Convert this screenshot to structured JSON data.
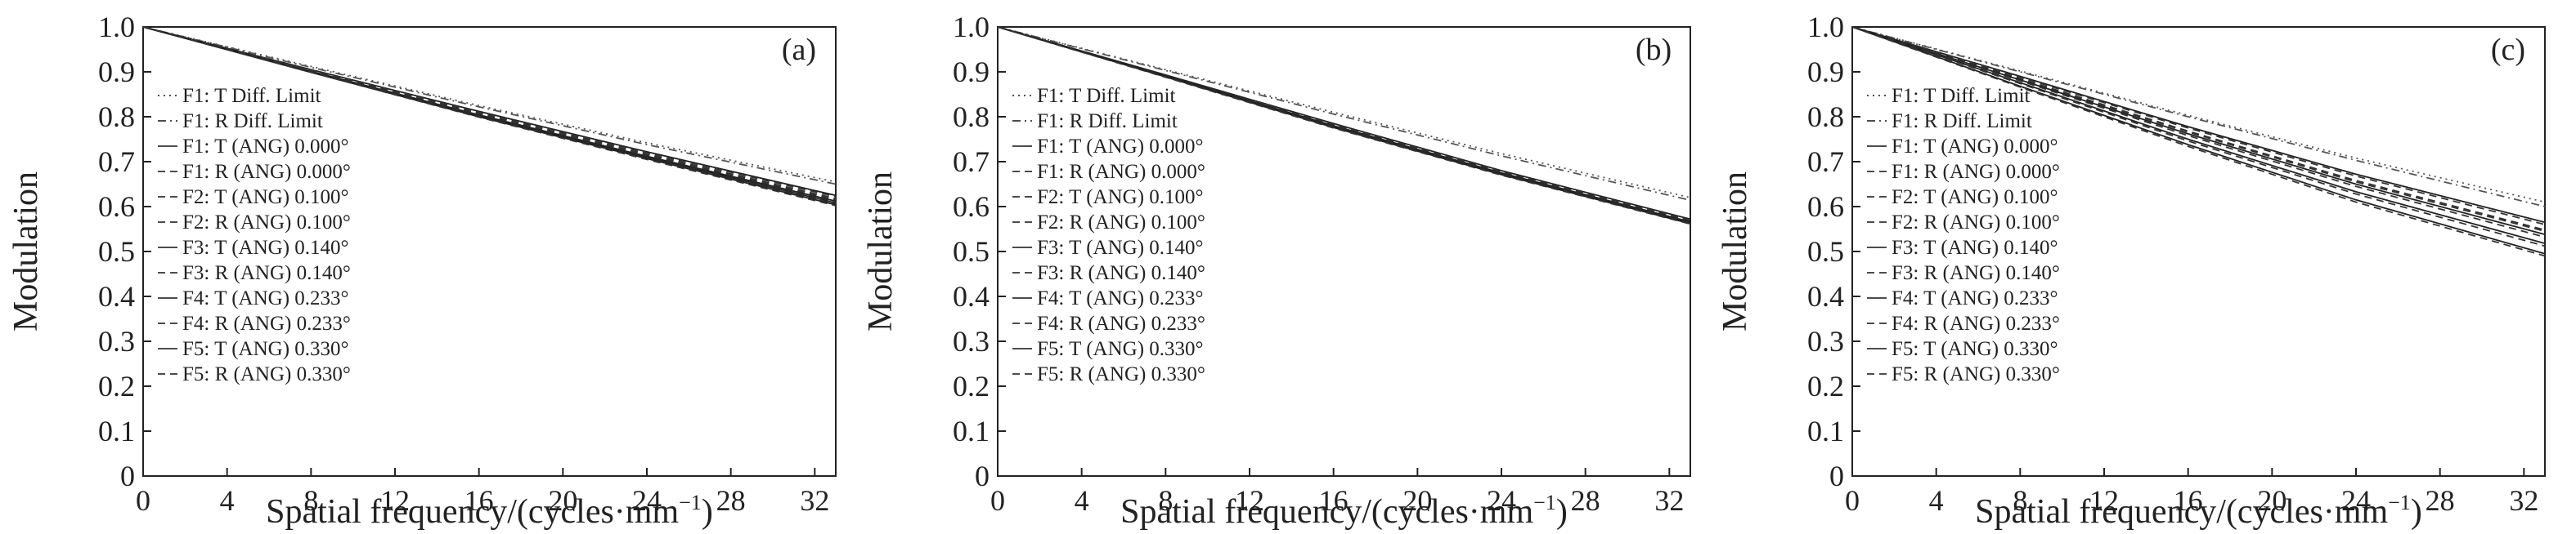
{
  "chart_data": [
    {
      "type": "line",
      "panel_label": "(a)",
      "xlabel": "Spatial frequency/(cycles·mm",
      "xlabel_sup": "−1",
      "xlabel_close": ")",
      "ylabel": "Modulation",
      "xlim": [
        0,
        33
      ],
      "ylim": [
        0,
        1
      ],
      "x_ticks": [
        "0",
        "4",
        "8",
        "12",
        "16",
        "20",
        "24",
        "28",
        "32"
      ],
      "y_ticks": [
        "0",
        "0.1",
        "0.2",
        "0.3",
        "0.4",
        "0.5",
        "0.6",
        "0.7",
        "0.8",
        "0.9",
        "1.0"
      ],
      "grid": false,
      "legend_placement": "left",
      "series": [
        {
          "name": "F1: T Diff. Limit",
          "dash": "dot",
          "values": [
            [
              0,
              1.0
            ],
            [
              8,
              0.912
            ],
            [
              16,
              0.825
            ],
            [
              24,
              0.742
            ],
            [
              33,
              0.655
            ]
          ]
        },
        {
          "name": "F1: R Diff. Limit",
          "dash": "dashdot",
          "values": [
            [
              0,
              1.0
            ],
            [
              8,
              0.91
            ],
            [
              16,
              0.822
            ],
            [
              24,
              0.738
            ],
            [
              33,
              0.65
            ]
          ]
        },
        {
          "name": "F1: T (ANG) 0.000°",
          "dash": "solid",
          "values": [
            [
              0,
              1.0
            ],
            [
              8,
              0.905
            ],
            [
              16,
              0.812
            ],
            [
              24,
              0.722
            ],
            [
              33,
              0.625
            ]
          ]
        },
        {
          "name": "F1: R (ANG) 0.000°",
          "dash": "dash",
          "values": [
            [
              0,
              1.0
            ],
            [
              8,
              0.904
            ],
            [
              16,
              0.81
            ],
            [
              24,
              0.72
            ],
            [
              33,
              0.622
            ]
          ]
        },
        {
          "name": "F2: T (ANG) 0.100°",
          "dash": "dash",
          "values": [
            [
              0,
              1.0
            ],
            [
              8,
              0.903
            ],
            [
              16,
              0.808
            ],
            [
              24,
              0.717
            ],
            [
              33,
              0.618
            ]
          ]
        },
        {
          "name": "F2: R (ANG) 0.100°",
          "dash": "dash",
          "values": [
            [
              0,
              1.0
            ],
            [
              8,
              0.902
            ],
            [
              16,
              0.806
            ],
            [
              24,
              0.715
            ],
            [
              33,
              0.615
            ]
          ]
        },
        {
          "name": "F3: T (ANG) 0.140°",
          "dash": "solid",
          "values": [
            [
              0,
              1.0
            ],
            [
              8,
              0.901
            ],
            [
              16,
              0.804
            ],
            [
              24,
              0.712
            ],
            [
              33,
              0.612
            ]
          ]
        },
        {
          "name": "F3: R (ANG) 0.140°",
          "dash": "dash",
          "values": [
            [
              0,
              1.0
            ],
            [
              8,
              0.901
            ],
            [
              16,
              0.803
            ],
            [
              24,
              0.711
            ],
            [
              33,
              0.61
            ]
          ]
        },
        {
          "name": "F4: T (ANG) 0.233°",
          "dash": "solid",
          "values": [
            [
              0,
              1.0
            ],
            [
              8,
              0.9
            ],
            [
              16,
              0.802
            ],
            [
              24,
              0.71
            ],
            [
              33,
              0.608
            ]
          ]
        },
        {
          "name": "F4: R (ANG) 0.233°",
          "dash": "dash",
          "values": [
            [
              0,
              1.0
            ],
            [
              8,
              0.9
            ],
            [
              16,
              0.801
            ],
            [
              24,
              0.708
            ],
            [
              33,
              0.606
            ]
          ]
        },
        {
          "name": "F5: T (ANG) 0.330°",
          "dash": "solid",
          "values": [
            [
              0,
              1.0
            ],
            [
              8,
              0.899
            ],
            [
              16,
              0.8
            ],
            [
              24,
              0.707
            ],
            [
              33,
              0.604
            ]
          ]
        },
        {
          "name": "F5: R (ANG) 0.330°",
          "dash": "dash",
          "values": [
            [
              0,
              1.0
            ],
            [
              8,
              0.899
            ],
            [
              16,
              0.799
            ],
            [
              24,
              0.705
            ],
            [
              33,
              0.602
            ]
          ]
        }
      ]
    },
    {
      "type": "line",
      "panel_label": "(b)",
      "xlabel": "Spatial frequency/(cycles·mm",
      "xlabel_sup": "−1",
      "xlabel_close": ")",
      "ylabel": "Modulation",
      "xlim": [
        0,
        33
      ],
      "ylim": [
        0,
        1
      ],
      "x_ticks": [
        "0",
        "4",
        "8",
        "12",
        "16",
        "20",
        "24",
        "28",
        "32"
      ],
      "y_ticks": [
        "0",
        "0.1",
        "0.2",
        "0.3",
        "0.4",
        "0.5",
        "0.6",
        "0.7",
        "0.8",
        "0.9",
        "1.0"
      ],
      "grid": false,
      "legend_placement": "left",
      "series": [
        {
          "name": "F1: T Diff. Limit",
          "dash": "dot",
          "values": [
            [
              0,
              1.0
            ],
            [
              8,
              0.905
            ],
            [
              16,
              0.81
            ],
            [
              24,
              0.718
            ],
            [
              33,
              0.62
            ]
          ]
        },
        {
          "name": "F1: R Diff. Limit",
          "dash": "dashdot",
          "values": [
            [
              0,
              1.0
            ],
            [
              8,
              0.903
            ],
            [
              16,
              0.806
            ],
            [
              24,
              0.713
            ],
            [
              33,
              0.614
            ]
          ]
        },
        {
          "name": "F1: T (ANG) 0.000°",
          "dash": "solid",
          "values": [
            [
              0,
              1.0
            ],
            [
              8,
              0.893
            ],
            [
              16,
              0.785
            ],
            [
              24,
              0.68
            ],
            [
              33,
              0.572
            ]
          ]
        },
        {
          "name": "F1: R (ANG) 0.000°",
          "dash": "dash",
          "values": [
            [
              0,
              1.0
            ],
            [
              8,
              0.892
            ],
            [
              16,
              0.783
            ],
            [
              24,
              0.678
            ],
            [
              33,
              0.57
            ]
          ]
        },
        {
          "name": "F2: T (ANG) 0.100°",
          "dash": "dash",
          "values": [
            [
              0,
              1.0
            ],
            [
              8,
              0.892
            ],
            [
              16,
              0.782
            ],
            [
              24,
              0.677
            ],
            [
              33,
              0.568
            ]
          ]
        },
        {
          "name": "F2: R (ANG) 0.100°",
          "dash": "dash",
          "values": [
            [
              0,
              1.0
            ],
            [
              8,
              0.891
            ],
            [
              16,
              0.781
            ],
            [
              24,
              0.676
            ],
            [
              33,
              0.567
            ]
          ]
        },
        {
          "name": "F3: T (ANG) 0.140°",
          "dash": "solid",
          "values": [
            [
              0,
              1.0
            ],
            [
              8,
              0.891
            ],
            [
              16,
              0.78
            ],
            [
              24,
              0.675
            ],
            [
              33,
              0.566
            ]
          ]
        },
        {
          "name": "F3: R (ANG) 0.140°",
          "dash": "dash",
          "values": [
            [
              0,
              1.0
            ],
            [
              8,
              0.89
            ],
            [
              16,
              0.779
            ],
            [
              24,
              0.674
            ],
            [
              33,
              0.565
            ]
          ]
        },
        {
          "name": "F4: T (ANG) 0.233°",
          "dash": "solid",
          "values": [
            [
              0,
              1.0
            ],
            [
              8,
              0.89
            ],
            [
              16,
              0.778
            ],
            [
              24,
              0.673
            ],
            [
              33,
              0.564
            ]
          ]
        },
        {
          "name": "F4: R (ANG) 0.233°",
          "dash": "dash",
          "values": [
            [
              0,
              1.0
            ],
            [
              8,
              0.889
            ],
            [
              16,
              0.777
            ],
            [
              24,
              0.672
            ],
            [
              33,
              0.563
            ]
          ]
        },
        {
          "name": "F5: T (ANG) 0.330°",
          "dash": "solid",
          "values": [
            [
              0,
              1.0
            ],
            [
              8,
              0.889
            ],
            [
              16,
              0.776
            ],
            [
              24,
              0.671
            ],
            [
              33,
              0.562
            ]
          ]
        },
        {
          "name": "F5: R (ANG) 0.330°",
          "dash": "dash",
          "values": [
            [
              0,
              1.0
            ],
            [
              8,
              0.888
            ],
            [
              16,
              0.775
            ],
            [
              24,
              0.67
            ],
            [
              33,
              0.561
            ]
          ]
        }
      ]
    },
    {
      "type": "line",
      "panel_label": "(c)",
      "xlabel": "Spatial frequency/(cycles·mm",
      "xlabel_sup": "−1",
      "xlabel_close": ")",
      "ylabel": "Modulation",
      "xlim": [
        0,
        33
      ],
      "ylim": [
        0,
        1
      ],
      "x_ticks": [
        "0",
        "4",
        "8",
        "12",
        "16",
        "20",
        "24",
        "28",
        "32"
      ],
      "y_ticks": [
        "0",
        "0.1",
        "0.2",
        "0.3",
        "0.4",
        "0.5",
        "0.6",
        "0.7",
        "0.8",
        "0.9",
        "1.0"
      ],
      "grid": false,
      "legend_placement": "left",
      "series": [
        {
          "name": "F1: T Diff. Limit",
          "dash": "dot",
          "values": [
            [
              0,
              1.0
            ],
            [
              8,
              0.902
            ],
            [
              16,
              0.803
            ],
            [
              24,
              0.708
            ],
            [
              33,
              0.61
            ]
          ]
        },
        {
          "name": "F1: R Diff. Limit",
          "dash": "dashdot",
          "values": [
            [
              0,
              1.0
            ],
            [
              8,
              0.9
            ],
            [
              16,
              0.8
            ],
            [
              24,
              0.703
            ],
            [
              33,
              0.6
            ]
          ]
        },
        {
          "name": "F1: T (ANG) 0.000°",
          "dash": "solid",
          "values": [
            [
              0,
              1.0
            ],
            [
              8,
              0.89
            ],
            [
              16,
              0.778
            ],
            [
              24,
              0.672
            ],
            [
              33,
              0.565
            ]
          ]
        },
        {
          "name": "F1: R (ANG) 0.000°",
          "dash": "dash",
          "values": [
            [
              0,
              1.0
            ],
            [
              8,
              0.888
            ],
            [
              16,
              0.775
            ],
            [
              24,
              0.668
            ],
            [
              33,
              0.56
            ]
          ]
        },
        {
          "name": "F2: T (ANG) 0.100°",
          "dash": "dash",
          "values": [
            [
              0,
              1.0
            ],
            [
              8,
              0.885
            ],
            [
              16,
              0.768
            ],
            [
              24,
              0.658
            ],
            [
              33,
              0.548
            ]
          ]
        },
        {
          "name": "F2: R (ANG) 0.100°",
          "dash": "dash",
          "values": [
            [
              0,
              1.0
            ],
            [
              8,
              0.884
            ],
            [
              16,
              0.766
            ],
            [
              24,
              0.655
            ],
            [
              33,
              0.545
            ]
          ]
        },
        {
          "name": "F3: T (ANG) 0.140°",
          "dash": "solid",
          "values": [
            [
              0,
              1.0
            ],
            [
              8,
              0.882
            ],
            [
              16,
              0.762
            ],
            [
              24,
              0.65
            ],
            [
              33,
              0.538
            ]
          ]
        },
        {
          "name": "F3: R (ANG) 0.140°",
          "dash": "dash",
          "values": [
            [
              0,
              1.0
            ],
            [
              8,
              0.88
            ],
            [
              16,
              0.758
            ],
            [
              24,
              0.645
            ],
            [
              33,
              0.532
            ]
          ]
        },
        {
          "name": "F4: T (ANG) 0.233°",
          "dash": "solid",
          "values": [
            [
              0,
              1.0
            ],
            [
              8,
              0.876
            ],
            [
              16,
              0.75
            ],
            [
              24,
              0.633
            ],
            [
              33,
              0.518
            ]
          ]
        },
        {
          "name": "F4: R (ANG) 0.233°",
          "dash": "dash",
          "values": [
            [
              0,
              1.0
            ],
            [
              8,
              0.874
            ],
            [
              16,
              0.746
            ],
            [
              24,
              0.628
            ],
            [
              33,
              0.512
            ]
          ]
        },
        {
          "name": "F5: T (ANG) 0.330°",
          "dash": "solid",
          "values": [
            [
              0,
              1.0
            ],
            [
              8,
              0.868
            ],
            [
              16,
              0.738
            ],
            [
              24,
              0.615
            ],
            [
              33,
              0.495
            ]
          ]
        },
        {
          "name": "F5: R (ANG) 0.330°",
          "dash": "dash",
          "values": [
            [
              0,
              1.0
            ],
            [
              8,
              0.866
            ],
            [
              16,
              0.734
            ],
            [
              24,
              0.61
            ],
            [
              33,
              0.49
            ]
          ]
        }
      ]
    }
  ]
}
